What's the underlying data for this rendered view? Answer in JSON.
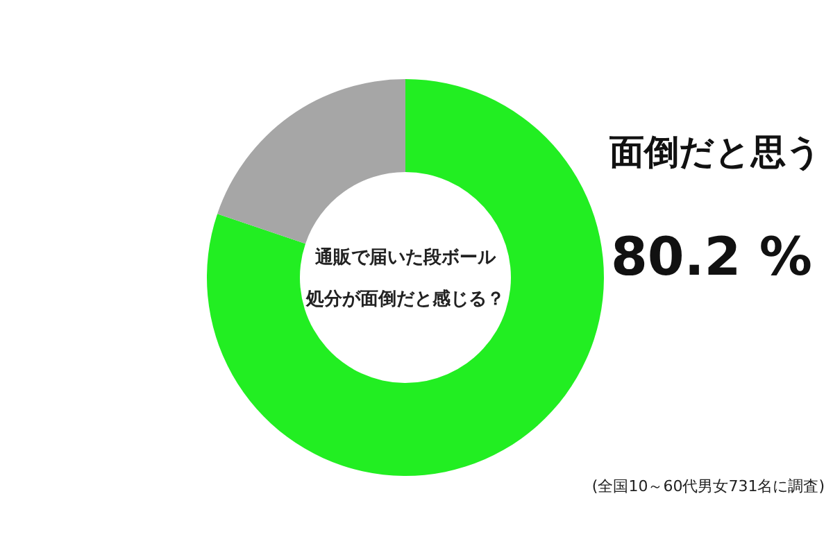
{
  "chart_data": {
    "type": "donut",
    "title": "通販で届いた段ボール",
    "subtitle": "処分が面倒だと感じる？",
    "categories": [
      "面倒だと思う",
      null
    ],
    "values": [
      80.2,
      19.8
    ],
    "colors": [
      "#22ee22",
      "#a6a6a6"
    ],
    "value_labels": [
      "80.2 %",
      null
    ],
    "annotations": [
      "(全国10～60代男女731名に調査)"
    ]
  }
}
